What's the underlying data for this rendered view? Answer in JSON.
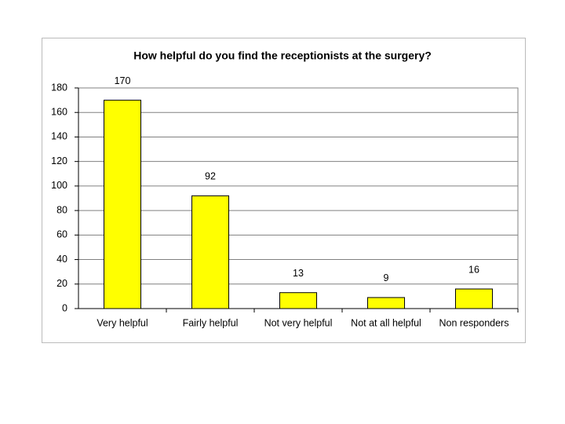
{
  "chart_data": {
    "type": "bar",
    "title": "How helpful do you find the receptionists at the surgery?",
    "categories": [
      "Very helpful",
      "Fairly helpful",
      "Not very helpful",
      "Not at all helpful",
      "Non responders"
    ],
    "values": [
      170,
      92,
      13,
      9,
      16
    ],
    "color": "#ffff00",
    "ylim": [
      0,
      180
    ],
    "yticks": [
      0,
      20,
      40,
      60,
      80,
      100,
      120,
      140,
      160,
      180
    ],
    "grid": true
  }
}
